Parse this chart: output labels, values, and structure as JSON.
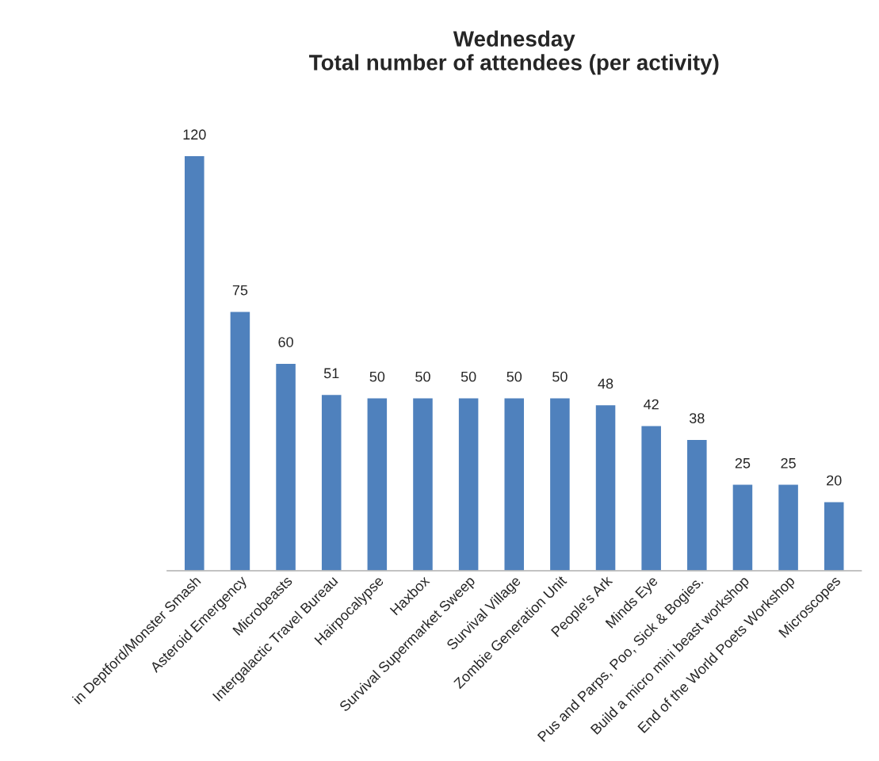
{
  "chart_data": {
    "type": "bar",
    "title": "Wednesday\nTotal number of attendees (per activity)",
    "categories": [
      "in Deptford/Monster Smash",
      "Asteroid Emergency",
      "Microbeasts",
      "Intergalactic Travel Bureau",
      "Hairpocalypse",
      "Haxbox",
      "Survival Supermarket Sweep",
      "Survival Village",
      "Zombie Generation Unit",
      "People's Ark",
      "Minds Eye",
      "Pus and Parps, Poo, Sick & Bogies.",
      "Build a micro mini beast workshop",
      "End of the World Poets Workshop",
      "Microscopes"
    ],
    "values": [
      120,
      75,
      60,
      51,
      50,
      50,
      50,
      50,
      50,
      48,
      42,
      38,
      25,
      25,
      20
    ],
    "color": "#4f81bd",
    "data_labels": true,
    "grid": false,
    "tick_labels": "x"
  }
}
